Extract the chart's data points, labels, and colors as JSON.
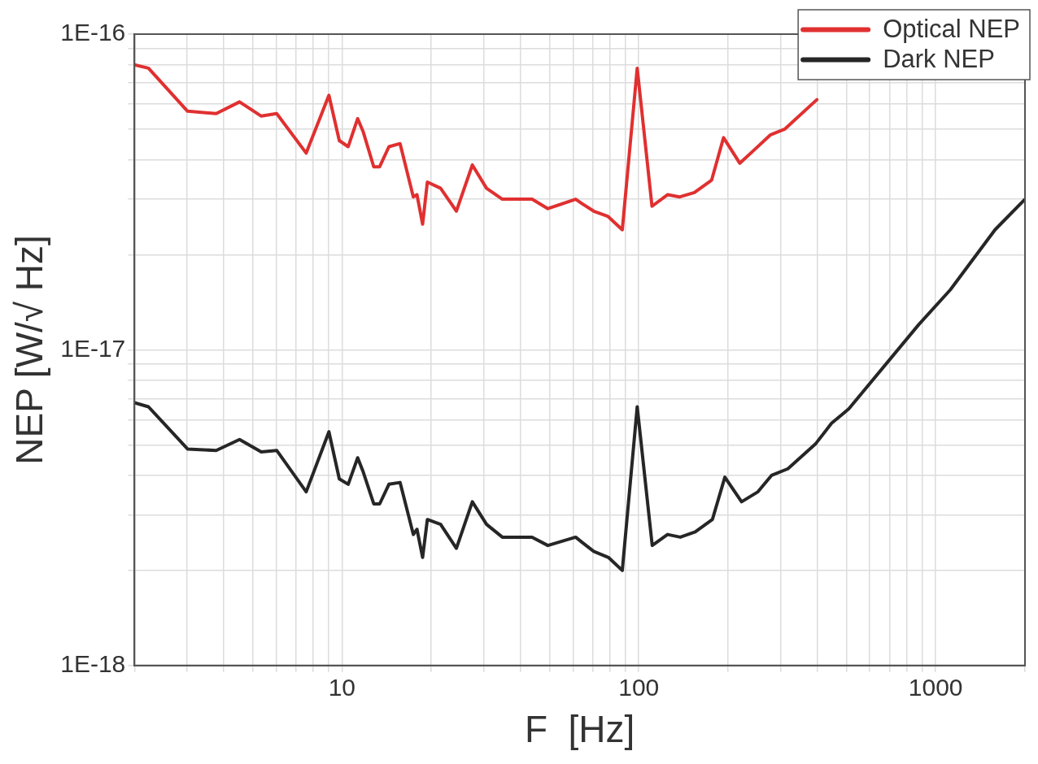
{
  "chart_data": {
    "type": "line",
    "xlabel": "F  [Hz]",
    "ylabel": "NEP [W/√ Hz]",
    "log": "xy",
    "grid": true,
    "legend": "top right",
    "marker": "none",
    "line_style": "solid",
    "xlim": [
      2,
      2000
    ],
    "xticks": [
      {
        "value": 2,
        "label": null
      },
      {
        "value": 3,
        "label": null
      },
      {
        "value": 4,
        "label": null
      },
      {
        "value": 5,
        "label": null
      },
      {
        "value": 6,
        "label": null
      },
      {
        "value": 7,
        "label": null
      },
      {
        "value": 8,
        "label": null
      },
      {
        "value": 9,
        "label": null
      },
      10,
      {
        "value": 20,
        "label": null
      },
      {
        "value": 30,
        "label": null
      },
      {
        "value": 40,
        "label": null
      },
      {
        "value": 50,
        "label": null
      },
      {
        "value": 60,
        "label": null
      },
      {
        "value": 70,
        "label": null
      },
      {
        "value": 80,
        "label": null
      },
      {
        "value": 90,
        "label": null
      },
      100,
      {
        "value": 200,
        "label": null
      },
      {
        "value": 300,
        "label": null
      },
      {
        "value": 400,
        "label": null
      },
      {
        "value": 500,
        "label": null
      },
      {
        "value": 600,
        "label": null
      },
      {
        "value": 700,
        "label": null
      },
      {
        "value": 800,
        "label": null
      },
      {
        "value": 900,
        "label": null
      },
      1000,
      {
        "value": 2000,
        "label": null
      }
    ],
    "ylim": [
      1e-18,
      1e-16
    ],
    "yticks": [
      {
        "value": 1e-18,
        "label": "1E-18"
      },
      {
        "value": 2e-18,
        "label": null
      },
      {
        "value": 3e-18,
        "label": null
      },
      {
        "value": 4e-18,
        "label": null
      },
      {
        "value": 5e-18,
        "label": null
      },
      {
        "value": 6e-18,
        "label": null
      },
      {
        "value": 7e-18,
        "label": null
      },
      {
        "value": 8e-18,
        "label": null
      },
      {
        "value": 9e-18,
        "label": null
      },
      {
        "value": 1e-17,
        "label": "1E-17"
      },
      {
        "value": 2e-17,
        "label": null
      },
      {
        "value": 3e-17,
        "label": null
      },
      {
        "value": 4e-17,
        "label": null
      },
      {
        "value": 5e-17,
        "label": null
      },
      {
        "value": 6e-17,
        "label": null
      },
      {
        "value": 7e-17,
        "label": null
      },
      {
        "value": 8e-17,
        "label": null
      },
      {
        "value": 9e-17,
        "label": null
      },
      {
        "value": 1e-16,
        "label": "1E-16"
      }
    ],
    "series": [
      {
        "name": "Optical NEP",
        "color": "#e03030",
        "x": [
          2,
          2.23,
          3.02,
          3.77,
          4.52,
          5.35,
          6.03,
          7.58,
          9.04,
          9.8,
          10.5,
          11.3,
          11.8,
          12.8,
          13.4,
          14.4,
          15.7,
          17.4,
          17.9,
          18.7,
          19.4,
          21.5,
          24.3,
          27.5,
          30.7,
          34.7,
          43.7,
          49.4,
          61.3,
          64.6,
          70.5,
          78.6,
          88,
          98.8,
          110.8,
          125,
          137,
          154,
          176,
          193,
          219,
          245,
          278,
          310,
          398
        ],
        "values": [
          8e-17,
          7.8e-17,
          5.7e-17,
          5.6e-17,
          6.1e-17,
          5.5e-17,
          5.6e-17,
          4.2e-17,
          6.4e-17,
          4.6e-17,
          4.4e-17,
          5.4e-17,
          4.9e-17,
          3.8e-17,
          3.8e-17,
          4.4e-17,
          4.5e-17,
          3.05e-17,
          3.1e-17,
          2.5e-17,
          3.4e-17,
          3.25e-17,
          2.75e-17,
          3.85e-17,
          3.25e-17,
          3e-17,
          3e-17,
          2.8e-17,
          3e-17,
          2.9e-17,
          2.75e-17,
          2.65e-17,
          2.4e-17,
          7.8e-17,
          2.85e-17,
          3.1e-17,
          3.05e-17,
          3.15e-17,
          3.45e-17,
          4.7e-17,
          3.9e-17,
          4.3e-17,
          4.8e-17,
          5e-17,
          6.2e-17
        ]
      },
      {
        "name": "Dark NEP",
        "color": "#262626",
        "x": [
          2,
          2.23,
          3.02,
          3.77,
          4.52,
          5.35,
          6.03,
          7.58,
          9.04,
          9.8,
          10.5,
          11.3,
          11.8,
          12.8,
          13.4,
          14.4,
          15.7,
          17.4,
          17.9,
          18.7,
          19.4,
          21.5,
          24.3,
          27.5,
          30.7,
          34.7,
          43.7,
          49.4,
          61.3,
          64.6,
          70.5,
          79,
          88,
          98.8,
          111,
          125,
          138,
          155,
          177,
          195,
          222,
          252,
          280,
          318,
          395,
          446,
          510,
          876,
          1121,
          1585,
          2000
        ],
        "values": [
          6.8e-18,
          6.6e-18,
          4.85e-18,
          4.8e-18,
          5.2e-18,
          4.75e-18,
          4.8e-18,
          3.55e-18,
          5.5e-18,
          3.9e-18,
          3.75e-18,
          4.55e-18,
          4.1e-18,
          3.25e-18,
          3.25e-18,
          3.75e-18,
          3.8e-18,
          2.6e-18,
          2.7e-18,
          2.2e-18,
          2.9e-18,
          2.8e-18,
          2.35e-18,
          3.3e-18,
          2.8e-18,
          2.55e-18,
          2.55e-18,
          2.4e-18,
          2.55e-18,
          2.45e-18,
          2.3e-18,
          2.2e-18,
          2e-18,
          6.6e-18,
          2.4e-18,
          2.6e-18,
          2.55e-18,
          2.65e-18,
          2.9e-18,
          3.95e-18,
          3.3e-18,
          3.55e-18,
          4e-18,
          4.2e-18,
          5.05e-18,
          5.85e-18,
          6.5e-18,
          1.2e-17,
          1.55e-17,
          2.4e-17,
          3e-17
        ]
      }
    ]
  }
}
